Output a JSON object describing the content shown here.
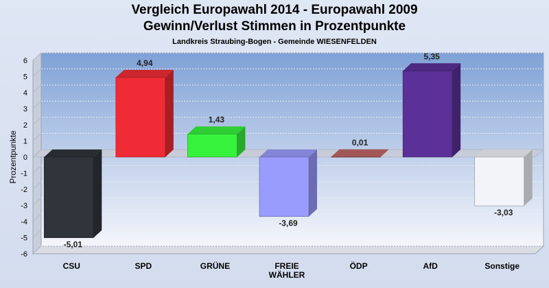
{
  "chart_data": {
    "type": "bar",
    "title": "Vergleich Europawahl 2014 - Europawahl 2009",
    "subtitle": "Gewinn/Verlust Stimmen in Prozentpunkte",
    "subsubtitle": "Landkreis Straubing-Bogen - Gemeinde WIESENFELDEN",
    "ylabel": "Prozentpunkte",
    "xlabel": "",
    "ylim": [
      -6,
      6
    ],
    "yticks": [
      "6",
      "5",
      "4",
      "3",
      "2",
      "1",
      "0",
      "-1",
      "-2",
      "-3",
      "-4",
      "-5",
      "-6"
    ],
    "grid": true,
    "categories": [
      "CSU",
      "SPD",
      "GRÜNE",
      "FREIE WÄHLER",
      "ÖDP",
      "AfD",
      "Sonstige"
    ],
    "category_lines": [
      [
        "CSU"
      ],
      [
        "SPD"
      ],
      [
        "GRÜNE"
      ],
      [
        "FREIE",
        "WÄHLER"
      ],
      [
        "ÖDP"
      ],
      [
        "AfD"
      ],
      [
        "Sonstige"
      ]
    ],
    "values": [
      -5.01,
      4.94,
      1.43,
      -3.69,
      0.01,
      5.35,
      -3.03
    ],
    "value_labels": [
      "-5,01",
      "4,94",
      "1,43",
      "-3,69",
      "0,01",
      "5,35",
      "-3,03"
    ],
    "colors": [
      "#30353b",
      "#ef2b35",
      "#37f23d",
      "#9a9cfd",
      "#c06866",
      "#5b3098",
      "#f2f4fa"
    ]
  }
}
